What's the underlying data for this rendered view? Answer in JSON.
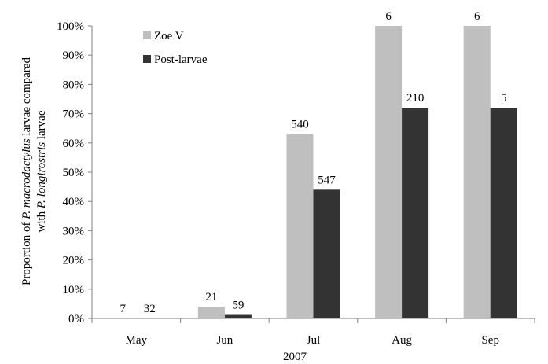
{
  "chart_data": {
    "type": "bar",
    "categories": [
      "May",
      "Jun",
      "Jul",
      "Aug",
      "Sep"
    ],
    "series": [
      {
        "name": "Zoe V",
        "values": [
          0,
          4,
          63,
          100,
          100
        ],
        "labels": [
          "7",
          "21",
          "540",
          "6",
          "6"
        ],
        "color": "#bfbfbf"
      },
      {
        "name": "Post-larvae",
        "values": [
          0,
          1.2,
          44,
          72,
          72
        ],
        "labels": [
          "32",
          "59",
          "547",
          "210",
          "5"
        ],
        "color": "#333333"
      }
    ],
    "ylim": [
      0,
      100
    ],
    "yticks": [
      "0%",
      "10%",
      "20%",
      "30%",
      "40%",
      "50%",
      "60%",
      "70%",
      "80%",
      "90%",
      "100%"
    ],
    "ylabel_parts": {
      "line1": [
        {
          "text": "Proportion of ",
          "italic": false
        },
        {
          "text": "P. macrodactylus",
          "italic": true
        },
        {
          "text": " larvae compared",
          "italic": false
        }
      ],
      "line2": [
        {
          "text": "with ",
          "italic": false
        },
        {
          "text": "P. longirostris",
          "italic": true
        },
        {
          "text": " larvae",
          "italic": false
        }
      ]
    },
    "xlabel": "2007",
    "legend_position": "top-left",
    "grid": false
  }
}
